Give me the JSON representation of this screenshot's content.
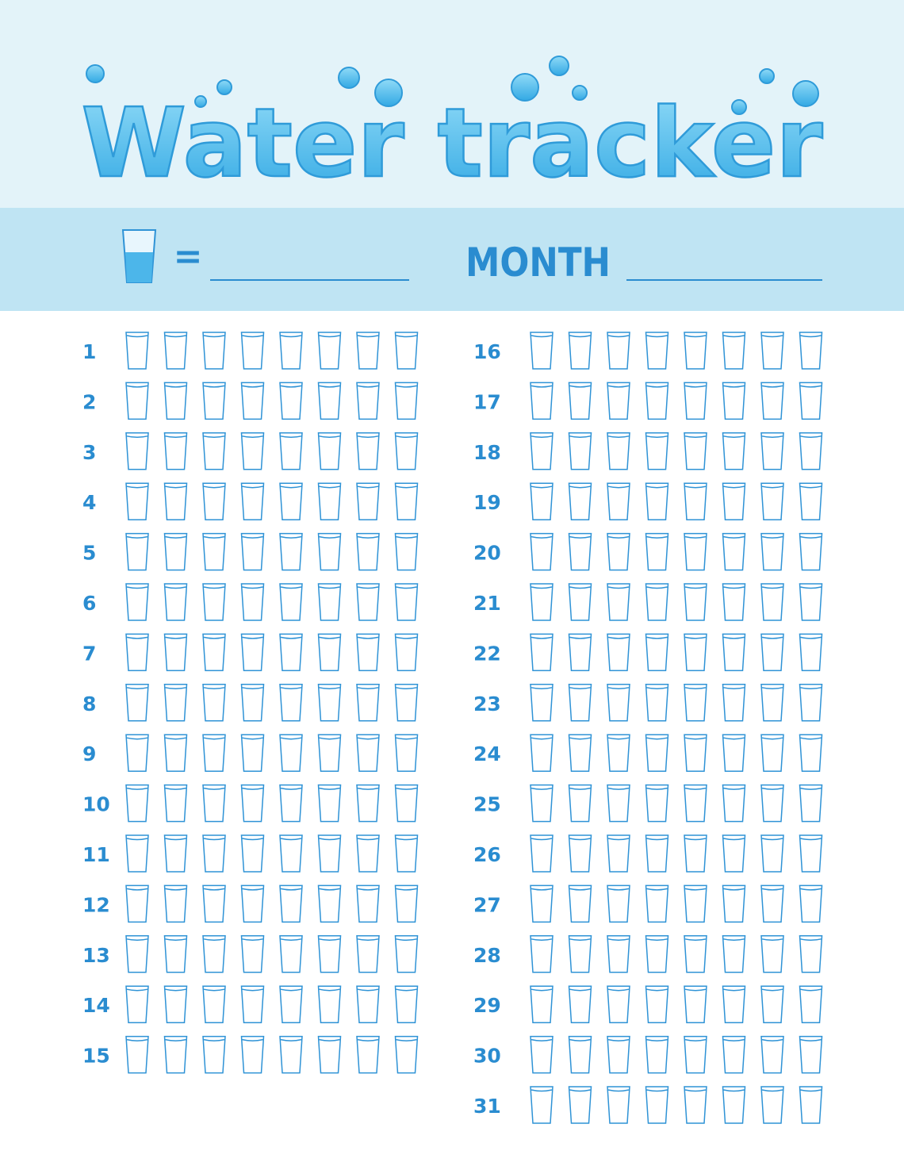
{
  "header": {
    "title": "Water tracker",
    "equals": "=",
    "month_label": "MONTH"
  },
  "days": [
    1,
    2,
    3,
    4,
    5,
    6,
    7,
    8,
    9,
    10,
    11,
    12,
    13,
    14,
    15,
    16,
    17,
    18,
    19,
    20,
    21,
    22,
    23,
    24,
    25,
    26,
    27,
    28,
    29,
    30,
    31
  ]
}
